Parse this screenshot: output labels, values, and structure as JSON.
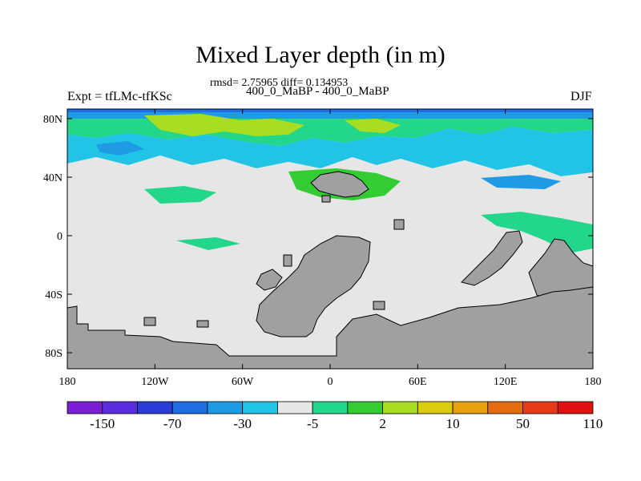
{
  "title": "Mixed Layer depth (in m)",
  "stats": "rmsd= 2.75965 diff= 0.134953",
  "subtitle": "400_0_MaBP - 400_0_MaBP",
  "left_label": "Expt = tfLMc-tfKSc",
  "right_label": "DJF",
  "colors": {
    "land": "#a0a0a0",
    "near_zero": "#e6e6e6",
    "levels": [
      "#7a1fd6",
      "#5a2de0",
      "#2a3dd6",
      "#1f6ee6",
      "#1f9be6",
      "#22c4e6",
      "#e6e6e6",
      "#22d68a",
      "#33cc33",
      "#a8dd22",
      "#dccc10",
      "#e6a010",
      "#e66a10",
      "#e63a18",
      "#e01010"
    ]
  },
  "x_ticks": [
    "180",
    "120W",
    "60W",
    "0",
    "60E",
    "120E",
    "180"
  ],
  "y_ticks": [
    "80N",
    "40N",
    "0",
    "40S",
    "80S"
  ],
  "colorbar_labels": [
    "-150",
    "-70",
    "-30",
    "-5",
    "2",
    "10",
    "50",
    "110"
  ]
}
